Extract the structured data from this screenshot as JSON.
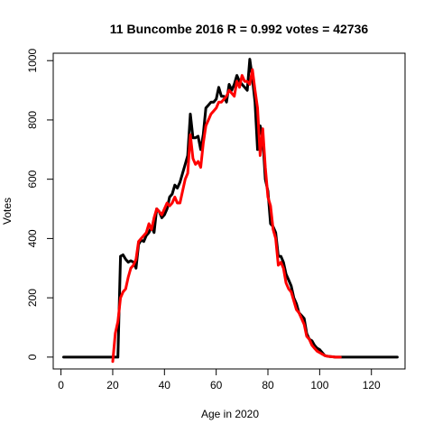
{
  "chart_data": {
    "type": "line",
    "title": "11 Buncombe 2016 R = 0.992 votes = 42736",
    "xlabel": "Age in 2020",
    "ylabel": "Votes",
    "xlim": [
      -3,
      133
    ],
    "ylim": [
      -40,
      1025
    ],
    "xticks": [
      0,
      20,
      40,
      60,
      80,
      100,
      120
    ],
    "yticks": [
      0,
      200,
      400,
      600,
      800,
      1000
    ],
    "grid": false,
    "legend": "none",
    "series": [
      {
        "color": "#000000",
        "x": [
          1,
          2,
          4,
          6,
          8,
          10,
          12,
          14,
          16,
          18,
          20,
          21,
          22,
          23,
          24,
          25,
          26,
          27,
          28,
          29,
          30,
          31,
          32,
          33,
          34,
          35,
          36,
          37,
          38,
          39,
          40,
          41,
          42,
          43,
          44,
          45,
          46,
          47,
          48,
          49,
          50,
          51,
          52,
          53,
          54,
          55,
          56,
          57,
          58,
          59,
          60,
          61,
          62,
          63,
          64,
          65,
          66,
          67,
          68,
          69,
          70,
          71,
          72,
          73,
          74,
          75,
          76,
          77,
          78,
          79,
          80,
          81,
          82,
          83,
          84,
          85,
          86,
          87,
          88,
          89,
          90,
          91,
          92,
          93,
          94,
          95,
          96,
          97,
          98,
          99,
          100,
          101,
          102,
          103,
          104,
          105,
          106,
          107,
          108,
          110,
          112,
          114,
          116,
          118,
          120,
          122,
          124,
          126,
          128,
          130
        ],
        "y": [
          0,
          0,
          0,
          0,
          0,
          0,
          0,
          0,
          0,
          0,
          0,
          0,
          0,
          340,
          345,
          330,
          320,
          325,
          320,
          300,
          380,
          395,
          390,
          410,
          420,
          440,
          420,
          500,
          490,
          470,
          480,
          500,
          540,
          550,
          580,
          570,
          590,
          620,
          650,
          680,
          820,
          740,
          740,
          745,
          700,
          750,
          840,
          850,
          860,
          860,
          870,
          910,
          880,
          880,
          860,
          920,
          900,
          920,
          950,
          930,
          920,
          910,
          900,
          1005,
          940,
          860,
          700,
          780,
          740,
          600,
          560,
          450,
          440,
          420,
          340,
          340,
          320,
          280,
          260,
          240,
          200,
          180,
          150,
          140,
          130,
          80,
          60,
          55,
          40,
          30,
          25,
          15,
          5,
          3,
          2,
          1,
          0,
          0,
          0,
          0,
          0,
          0,
          0,
          0,
          0,
          0,
          0,
          0,
          0,
          0
        ]
      },
      {
        "color": "#ff0000",
        "x": [
          20,
          21,
          22,
          23,
          24,
          25,
          26,
          27,
          28,
          29,
          30,
          31,
          32,
          33,
          34,
          35,
          36,
          37,
          38,
          39,
          40,
          41,
          42,
          43,
          44,
          45,
          46,
          47,
          48,
          49,
          50,
          51,
          52,
          53,
          54,
          55,
          56,
          57,
          58,
          59,
          60,
          61,
          62,
          63,
          64,
          65,
          66,
          67,
          68,
          69,
          70,
          71,
          72,
          73,
          74,
          75,
          76,
          77,
          78,
          79,
          80,
          81,
          82,
          83,
          84,
          85,
          86,
          87,
          88,
          89,
          90,
          91,
          92,
          93,
          94,
          95,
          96,
          97,
          98,
          99,
          100,
          101,
          102,
          103,
          104,
          105,
          106,
          107,
          108
        ],
        "y": [
          -15,
          80,
          120,
          200,
          220,
          230,
          270,
          300,
          310,
          330,
          390,
          400,
          410,
          420,
          450,
          430,
          470,
          500,
          490,
          480,
          500,
          520,
          510,
          520,
          540,
          520,
          520,
          560,
          600,
          620,
          750,
          670,
          650,
          660,
          640,
          720,
          780,
          800,
          820,
          830,
          840,
          860,
          860,
          870,
          880,
          900,
          890,
          880,
          930,
          910,
          950,
          930,
          930,
          920,
          970,
          900,
          840,
          680,
          770,
          640,
          540,
          510,
          430,
          400,
          310,
          320,
          300,
          250,
          230,
          220,
          190,
          160,
          150,
          130,
          110,
          70,
          60,
          40,
          30,
          20,
          15,
          10,
          5,
          3,
          2,
          1,
          0,
          0,
          0
        ]
      }
    ]
  }
}
